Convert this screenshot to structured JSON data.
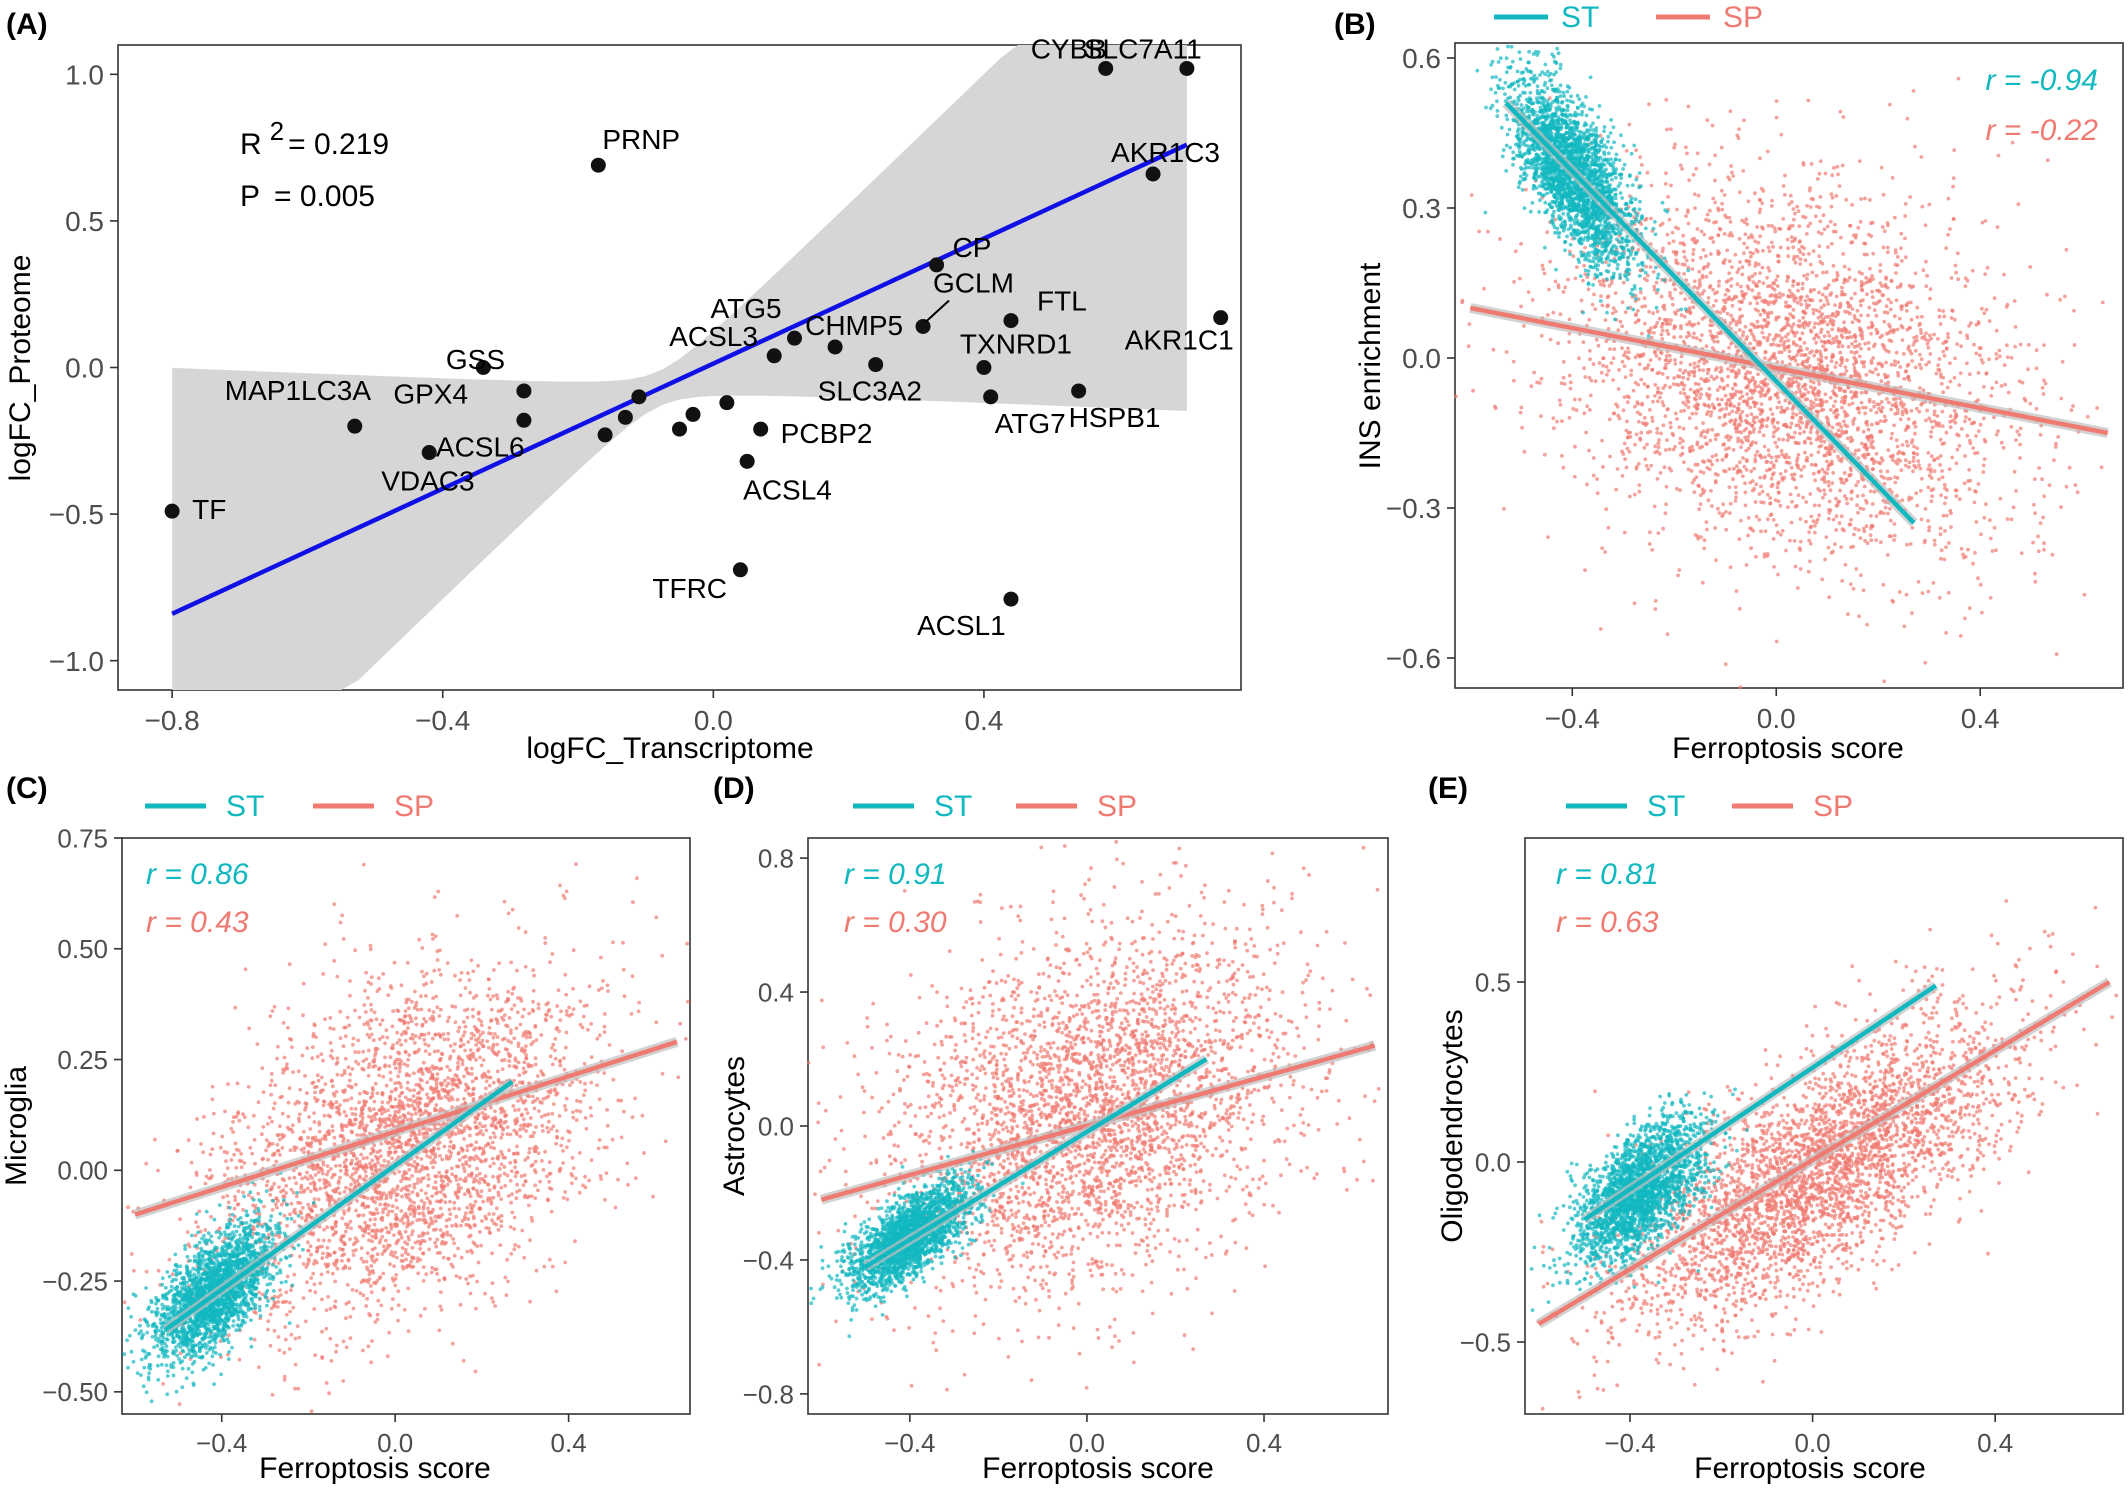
{
  "colors": {
    "st": "#12b8c0",
    "sp": "#ef7a72",
    "fit_a": "#1010e6",
    "band": "#d6d6d6",
    "point": "#1a1a1a"
  },
  "chart_data": [
    {
      "id": "A",
      "panel_label": "(A)",
      "type": "scatter",
      "xlabel": "logFC_Transcriptome",
      "ylabel": "logFC_Proteome",
      "xlim": [
        -0.88,
        0.78
      ],
      "ylim": [
        -1.1,
        1.1
      ],
      "xticks": [
        -0.8,
        -0.4,
        0.0,
        0.4
      ],
      "xtick_labels": [
        "−0.8",
        "−0.4",
        "0.0",
        "0.4"
      ],
      "yticks": [
        -1.0,
        -0.5,
        0.0,
        0.5,
        1.0
      ],
      "ytick_labels": [
        "−1.0",
        "−0.5",
        "0.0",
        "0.5",
        "1.0"
      ],
      "stats": {
        "r2_label": "R",
        "r2_sup": "2",
        "r2_value": "= 0.219",
        "p_label": "P",
        "p_value": "= 0.005"
      },
      "fit": {
        "x": [
          -0.8,
          0.7
        ],
        "y": [
          -0.84,
          0.76
        ]
      },
      "points": [
        {
          "label": "TF",
          "x": -0.8,
          "y": -0.49
        },
        {
          "label": "MAP1LC3A",
          "x": -0.53,
          "y": -0.2
        },
        {
          "label": "VDAC3",
          "x": -0.42,
          "y": -0.29
        },
        {
          "label": "GPX4",
          "x": -0.34,
          "y": 0.0
        },
        {
          "label": "ACSL6",
          "x": -0.28,
          "y": -0.18
        },
        {
          "label": "GSS",
          "x": -0.28,
          "y": -0.08
        },
        {
          "label": "",
          "x": -0.16,
          "y": -0.23
        },
        {
          "label": "",
          "x": -0.13,
          "y": -0.17
        },
        {
          "label": "",
          "x": -0.11,
          "y": -0.1
        },
        {
          "label": "PRNP",
          "x": -0.17,
          "y": 0.69
        },
        {
          "label": "",
          "x": -0.05,
          "y": -0.21
        },
        {
          "label": "",
          "x": -0.03,
          "y": -0.16
        },
        {
          "label": "",
          "x": 0.02,
          "y": -0.12
        },
        {
          "label": "ACSL3",
          "x": 0.09,
          "y": 0.04
        },
        {
          "label": "ATG5",
          "x": 0.12,
          "y": 0.1
        },
        {
          "label": "PCBP2",
          "x": 0.07,
          "y": -0.21
        },
        {
          "label": "ACSL4",
          "x": 0.05,
          "y": -0.32
        },
        {
          "label": "TFRC",
          "x": 0.04,
          "y": -0.69
        },
        {
          "label": "CHMP5",
          "x": 0.18,
          "y": 0.07
        },
        {
          "label": "SLC3A2",
          "x": 0.24,
          "y": 0.01
        },
        {
          "label": "GCLM",
          "x": 0.31,
          "y": 0.14
        },
        {
          "label": "CP",
          "x": 0.33,
          "y": 0.35
        },
        {
          "label": "TXNRD1",
          "x": 0.4,
          "y": 0.0
        },
        {
          "label": "ATG7",
          "x": 0.41,
          "y": -0.1
        },
        {
          "label": "FTL",
          "x": 0.44,
          "y": 0.16
        },
        {
          "label": "ACSL1",
          "x": 0.44,
          "y": -0.79
        },
        {
          "label": "HSPB1",
          "x": 0.54,
          "y": -0.08
        },
        {
          "label": "AKR1C3",
          "x": 0.65,
          "y": 0.66
        },
        {
          "label": "AKR1C1",
          "x": 0.75,
          "y": 0.17
        },
        {
          "label": "CYBB",
          "x": 0.58,
          "y": 1.02
        },
        {
          "label": "SLC7A11",
          "x": 0.7,
          "y": 1.02
        }
      ]
    },
    {
      "id": "B",
      "panel_label": "(B)",
      "type": "scatter",
      "xlabel": "Ferroptosis score",
      "ylabel": "INS enrichment",
      "xlim": [
        -0.63,
        0.68
      ],
      "ylim": [
        -0.66,
        0.63
      ],
      "xticks": [
        -0.4,
        0.0,
        0.4
      ],
      "xtick_labels": [
        "−0.4",
        "0.0",
        "0.4"
      ],
      "yticks": [
        -0.6,
        -0.3,
        0.0,
        0.3,
        0.6
      ],
      "ytick_labels": [
        "−0.6",
        "−0.3",
        "0.0",
        "0.3",
        "0.6"
      ],
      "legend": {
        "position": "top",
        "items": [
          "ST",
          "SP"
        ]
      },
      "r_values": {
        "st": "r = -0.94",
        "sp": "r = -0.22"
      },
      "series": [
        {
          "name": "ST",
          "fit": {
            "x": [
              -0.53,
              0.27
            ],
            "y": [
              0.51,
              -0.33
            ]
          },
          "center": [
            -0.4,
            0.37
          ],
          "spread": [
            0.06,
            0.07
          ],
          "n": 2600,
          "slope": -1.05
        },
        {
          "name": "SP",
          "fit": {
            "x": [
              -0.6,
              0.65
            ],
            "y": [
              0.1,
              -0.15
            ]
          },
          "center": [
            0.02,
            -0.03
          ],
          "spread": [
            0.22,
            0.18
          ],
          "n": 3500,
          "slope": -0.2
        }
      ]
    },
    {
      "id": "C",
      "panel_label": "(C)",
      "type": "scatter",
      "xlabel": "Ferroptosis score",
      "ylabel": "Microglia",
      "xlim": [
        -0.63,
        0.68
      ],
      "ylim": [
        -0.55,
        0.75
      ],
      "xticks": [
        -0.4,
        0.0,
        0.4
      ],
      "xtick_labels": [
        "−0.4",
        "0.0",
        "0.4"
      ],
      "yticks": [
        -0.5,
        -0.25,
        0.0,
        0.25,
        0.5,
        0.75
      ],
      "ytick_labels": [
        "−0.50",
        "−0.25",
        "0.00",
        "0.25",
        "0.50",
        "0.75"
      ],
      "legend": {
        "position": "top",
        "items": [
          "ST",
          "SP"
        ]
      },
      "r_values": {
        "st": "r = 0.86",
        "sp": "r = 0.43"
      },
      "series": [
        {
          "name": "ST",
          "fit": {
            "x": [
              -0.53,
              0.27
            ],
            "y": [
              -0.36,
              0.2
            ]
          },
          "center": [
            -0.42,
            -0.28
          ],
          "spread": [
            0.07,
            0.06
          ],
          "n": 2200,
          "slope": 0.7
        },
        {
          "name": "SP",
          "fit": {
            "x": [
              -0.6,
              0.65
            ],
            "y": [
              -0.1,
              0.29
            ]
          },
          "center": [
            0.02,
            0.05
          ],
          "spread": [
            0.22,
            0.18
          ],
          "n": 3200,
          "slope": 0.33
        }
      ]
    },
    {
      "id": "D",
      "panel_label": "(D)",
      "type": "scatter",
      "xlabel": "Ferroptosis score",
      "ylabel": "Astrocytes",
      "xlim": [
        -0.63,
        0.68
      ],
      "ylim": [
        -0.86,
        0.86
      ],
      "xticks": [
        -0.4,
        0.0,
        0.4
      ],
      "xtick_labels": [
        "−0.4",
        "0.0",
        "0.4"
      ],
      "yticks": [
        -0.8,
        -0.4,
        0.0,
        0.4,
        0.8
      ],
      "ytick_labels": [
        "−0.8",
        "−0.4",
        "0.0",
        "0.4",
        "0.8"
      ],
      "legend": {
        "position": "top",
        "items": [
          "ST",
          "SP"
        ]
      },
      "r_values": {
        "st": "r = 0.91",
        "sp": "r = 0.30"
      },
      "series": [
        {
          "name": "ST",
          "fit": {
            "x": [
              -0.5,
              0.27
            ],
            "y": [
              -0.42,
              0.2
            ]
          },
          "center": [
            -0.4,
            -0.33
          ],
          "spread": [
            0.07,
            0.06
          ],
          "n": 2200,
          "slope": 0.8
        },
        {
          "name": "SP",
          "fit": {
            "x": [
              -0.6,
              0.65
            ],
            "y": [
              -0.22,
              0.24
            ]
          },
          "center": [
            0.02,
            0.05
          ],
          "spread": [
            0.22,
            0.26
          ],
          "n": 3300,
          "slope": 0.37
        }
      ]
    },
    {
      "id": "E",
      "panel_label": "(E)",
      "type": "scatter",
      "xlabel": "Ferroptosis score",
      "ylabel": "Oligodendrocytes",
      "xlim": [
        -0.63,
        0.68
      ],
      "ylim": [
        -0.7,
        0.9
      ],
      "xticks": [
        -0.4,
        0.0,
        0.4
      ],
      "xtick_labels": [
        "−0.4",
        "0.0",
        "0.4"
      ],
      "yticks": [
        -0.5,
        0.0,
        0.5
      ],
      "ytick_labels": [
        "−0.5",
        "0.0",
        "0.5"
      ],
      "legend": {
        "position": "top",
        "items": [
          "ST",
          "SP"
        ]
      },
      "r_values": {
        "st": "r = 0.81",
        "sp": "r = 0.63"
      },
      "series": [
        {
          "name": "ST",
          "fit": {
            "x": [
              -0.5,
              0.27
            ],
            "y": [
              -0.16,
              0.49
            ]
          },
          "center": [
            -0.38,
            -0.08
          ],
          "spread": [
            0.07,
            0.08
          ],
          "n": 2300,
          "slope": 0.85
        },
        {
          "name": "SP",
          "fit": {
            "x": [
              -0.6,
              0.65
            ],
            "y": [
              -0.45,
              0.5
            ]
          },
          "center": [
            0.02,
            -0.02
          ],
          "spread": [
            0.22,
            0.15
          ],
          "n": 3300,
          "slope": 0.7
        }
      ]
    }
  ]
}
